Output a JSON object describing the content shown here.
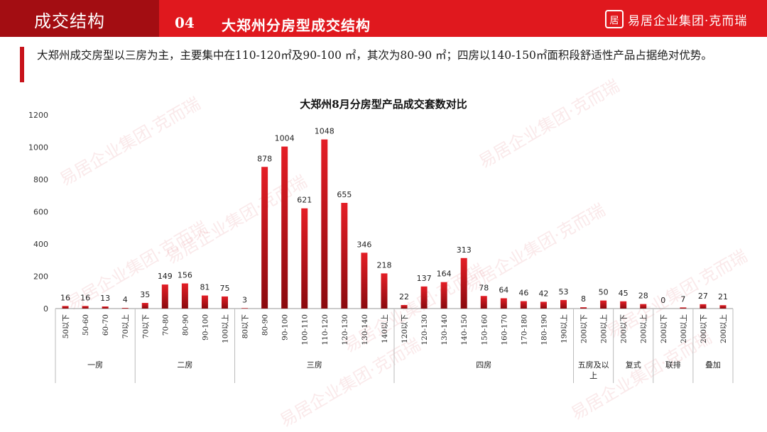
{
  "header": {
    "title": "成交结构",
    "section_number": "04",
    "section_title": "大郑州分房型成交结构",
    "logo_text": "易居企业集团·克而瑞",
    "logo_mark": "居"
  },
  "summary": "大郑州成交房型以三房为主，主要集中在110-120㎡及90-100 ㎡，其次为80-90 ㎡；四房以140-150㎡面积段舒适性产品占据绝对优势。",
  "watermark_text": "易居企业集团·克而瑞",
  "colors": {
    "header_dark": "#a30d12",
    "header_red": "#e0181e",
    "bar_top": "#e41e26",
    "bar_bottom": "#8a0a0e"
  },
  "chart_data": {
    "type": "bar",
    "title": "大郑州8月分房型产品成交套数对比",
    "ylim": [
      0,
      1200
    ],
    "yticks": [
      0,
      200,
      400,
      600,
      800,
      1000,
      1200
    ],
    "grid": false,
    "categories": [
      "50以下",
      "50-60",
      "60-70",
      "70以上",
      "70以下",
      "70-80",
      "80-90",
      "90-100",
      "100以上",
      "80以下",
      "80-90",
      "90-100",
      "100-110",
      "110-120",
      "120-130",
      "130-140",
      "140以上",
      "120以下",
      "120-130",
      "130-140",
      "140-150",
      "150-160",
      "160-170",
      "170-180",
      "180-190",
      "190以上",
      "200以下",
      "200以上",
      "200以下",
      "200以上",
      "200以下",
      "200以上",
      "200以下",
      "200以上"
    ],
    "values": [
      16,
      16,
      13,
      4,
      35,
      149,
      156,
      81,
      75,
      3,
      878,
      1004,
      621,
      1048,
      655,
      346,
      218,
      22,
      137,
      164,
      313,
      78,
      64,
      46,
      42,
      53,
      8,
      50,
      45,
      28,
      0,
      7,
      27,
      21
    ],
    "groups": [
      {
        "label": "一房",
        "count": 4
      },
      {
        "label": "二房",
        "count": 5
      },
      {
        "label": "三房",
        "count": 8
      },
      {
        "label": "四房",
        "count": 9
      },
      {
        "label": "五房及以上",
        "count": 2
      },
      {
        "label": "复式",
        "count": 2
      },
      {
        "label": "联排",
        "count": 2
      },
      {
        "label": "叠加",
        "count": 2
      }
    ]
  }
}
